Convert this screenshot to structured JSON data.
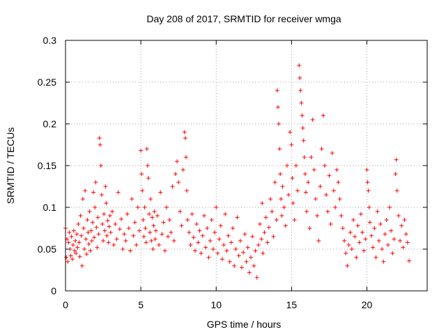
{
  "chart_data": {
    "type": "scatter",
    "title": "Day 208 of 2017, SRMTID for receiver wmga",
    "xlabel": "GPS time / hours",
    "ylabel": "SRMTID / TECUs",
    "xlim": [
      0,
      24
    ],
    "ylim": [
      0,
      0.3
    ],
    "x_ticks": [
      0,
      5,
      10,
      15,
      20
    ],
    "x_tick_labels": [
      "0",
      "5",
      "10",
      "15",
      "20"
    ],
    "y_ticks": [
      0,
      0.05,
      0.1,
      0.15,
      0.2,
      0.25,
      0.3
    ],
    "y_tick_labels": [
      "0",
      "0.05",
      "0.1",
      "0.15",
      "0.2",
      "0.25",
      "0.3"
    ],
    "grid": true,
    "marker": "+",
    "color": "#ff0000",
    "series": [
      {
        "name": "SRMTID",
        "points": [
          [
            0.0,
            0.075
          ],
          [
            0.05,
            0.04
          ],
          [
            0.1,
            0.062
          ],
          [
            0.15,
            0.035
          ],
          [
            0.2,
            0.058
          ],
          [
            0.25,
            0.07
          ],
          [
            0.3,
            0.05
          ],
          [
            0.35,
            0.042
          ],
          [
            0.4,
            0.065
          ],
          [
            0.45,
            0.038
          ],
          [
            0.5,
            0.055
          ],
          [
            0.55,
            0.072
          ],
          [
            0.6,
            0.048
          ],
          [
            0.65,
            0.06
          ],
          [
            0.7,
            0.045
          ],
          [
            0.75,
            0.068
          ],
          [
            0.8,
            0.052
          ],
          [
            0.85,
            0.08
          ],
          [
            0.9,
            0.058
          ],
          [
            0.95,
            0.041
          ],
          [
            1.0,
            0.09
          ],
          [
            1.05,
            0.066
          ],
          [
            1.1,
            0.03
          ],
          [
            1.15,
            0.11
          ],
          [
            1.2,
            0.075
          ],
          [
            1.25,
            0.05
          ],
          [
            1.3,
            0.12
          ],
          [
            1.35,
            0.062
          ],
          [
            1.4,
            0.044
          ],
          [
            1.45,
            0.085
          ],
          [
            1.5,
            0.07
          ],
          [
            1.55,
            0.056
          ],
          [
            1.6,
            0.095
          ],
          [
            1.65,
            0.048
          ],
          [
            1.7,
            0.072
          ],
          [
            1.75,
            0.06
          ],
          [
            1.8,
            0.082
          ],
          [
            1.85,
            0.118
          ],
          [
            1.9,
            0.064
          ],
          [
            1.95,
            0.1
          ],
          [
            2.0,
            0.13
          ],
          [
            2.05,
            0.076
          ],
          [
            2.1,
            0.052
          ],
          [
            2.15,
            0.088
          ],
          [
            2.2,
            0.068
          ],
          [
            2.25,
            0.183
          ],
          [
            2.3,
            0.175
          ],
          [
            2.35,
            0.15
          ],
          [
            2.4,
            0.115
          ],
          [
            2.45,
            0.08
          ],
          [
            2.5,
            0.06
          ],
          [
            2.55,
            0.092
          ],
          [
            2.6,
            0.072
          ],
          [
            2.65,
            0.125
          ],
          [
            2.7,
            0.105
          ],
          [
            2.75,
            0.066
          ],
          [
            2.8,
            0.084
          ],
          [
            2.85,
            0.058
          ],
          [
            2.9,
            0.077
          ],
          [
            2.95,
            0.09
          ],
          [
            3.0,
            0.07
          ],
          [
            3.1,
            0.095
          ],
          [
            3.2,
            0.055
          ],
          [
            3.3,
            0.08
          ],
          [
            3.4,
            0.062
          ],
          [
            3.5,
            0.118
          ],
          [
            3.6,
            0.074
          ],
          [
            3.7,
            0.086
          ],
          [
            3.8,
            0.05
          ],
          [
            3.9,
            0.068
          ],
          [
            4.0,
            0.06
          ],
          [
            4.1,
            0.092
          ],
          [
            4.2,
            0.075
          ],
          [
            4.3,
            0.048
          ],
          [
            4.4,
            0.11
          ],
          [
            4.5,
            0.066
          ],
          [
            4.6,
            0.082
          ],
          [
            4.7,
            0.055
          ],
          [
            4.8,
            0.1
          ],
          [
            4.9,
            0.072
          ],
          [
            5.0,
            0.168
          ],
          [
            5.05,
            0.14
          ],
          [
            5.1,
            0.12
          ],
          [
            5.15,
            0.085
          ],
          [
            5.2,
            0.065
          ],
          [
            5.25,
            0.1
          ],
          [
            5.3,
            0.075
          ],
          [
            5.35,
            0.058
          ],
          [
            5.4,
            0.17
          ],
          [
            5.45,
            0.15
          ],
          [
            5.5,
            0.135
          ],
          [
            5.55,
            0.092
          ],
          [
            5.6,
            0.07
          ],
          [
            5.65,
            0.11
          ],
          [
            5.7,
            0.06
          ],
          [
            5.75,
            0.088
          ],
          [
            5.8,
            0.05
          ],
          [
            5.85,
            0.078
          ],
          [
            5.9,
            0.095
          ],
          [
            5.95,
            0.062
          ],
          [
            6.0,
            0.072
          ],
          [
            6.1,
            0.09
          ],
          [
            6.2,
            0.055
          ],
          [
            6.3,
            0.118
          ],
          [
            6.4,
            0.068
          ],
          [
            6.5,
            0.082
          ],
          [
            6.6,
            0.048
          ],
          [
            6.7,
            0.1
          ],
          [
            6.8,
            0.065
          ],
          [
            6.9,
            0.085
          ],
          [
            7.0,
            0.07
          ],
          [
            7.1,
            0.125
          ],
          [
            7.2,
            0.06
          ],
          [
            7.3,
            0.14
          ],
          [
            7.4,
            0.155
          ],
          [
            7.5,
            0.13
          ],
          [
            7.6,
            0.095
          ],
          [
            7.7,
            0.078
          ],
          [
            7.8,
            0.145
          ],
          [
            7.9,
            0.19
          ],
          [
            7.95,
            0.183
          ],
          [
            8.0,
            0.16
          ],
          [
            8.05,
            0.12
          ],
          [
            8.1,
            0.085
          ],
          [
            8.2,
            0.07
          ],
          [
            8.3,
            0.055
          ],
          [
            8.4,
            0.092
          ],
          [
            8.5,
            0.064
          ],
          [
            8.6,
            0.048
          ],
          [
            8.7,
            0.08
          ],
          [
            8.8,
            0.058
          ],
          [
            8.9,
            0.072
          ],
          [
            9.0,
            0.045
          ],
          [
            9.1,
            0.066
          ],
          [
            9.2,
            0.09
          ],
          [
            9.3,
            0.052
          ],
          [
            9.4,
            0.075
          ],
          [
            9.5,
            0.04
          ],
          [
            9.6,
            0.06
          ],
          [
            9.7,
            0.085
          ],
          [
            9.8,
            0.05
          ],
          [
            9.9,
            0.07
          ],
          [
            10.0,
            0.1
          ],
          [
            10.1,
            0.045
          ],
          [
            10.2,
            0.062
          ],
          [
            10.3,
            0.078
          ],
          [
            10.4,
            0.038
          ],
          [
            10.5,
            0.055
          ],
          [
            10.6,
            0.092
          ],
          [
            10.7,
            0.048
          ],
          [
            10.8,
            0.066
          ],
          [
            10.9,
            0.035
          ],
          [
            11.0,
            0.058
          ],
          [
            11.1,
            0.075
          ],
          [
            11.2,
            0.03
          ],
          [
            11.3,
            0.05
          ],
          [
            11.4,
            0.088
          ],
          [
            11.5,
            0.042
          ],
          [
            11.6,
            0.06
          ],
          [
            11.7,
            0.028
          ],
          [
            11.8,
            0.046
          ],
          [
            11.9,
            0.068
          ],
          [
            12.0,
            0.035
          ],
          [
            12.1,
            0.052
          ],
          [
            12.2,
            0.022
          ],
          [
            12.3,
            0.04
          ],
          [
            12.4,
            0.065
          ],
          [
            12.5,
            0.03
          ],
          [
            12.6,
            0.048
          ],
          [
            12.7,
            0.016
          ],
          [
            12.8,
            0.055
          ],
          [
            12.9,
            0.08
          ],
          [
            13.0,
            0.062
          ],
          [
            13.05,
            0.105
          ],
          [
            13.1,
            0.045
          ],
          [
            13.2,
            0.07
          ],
          [
            13.3,
            0.088
          ],
          [
            13.4,
            0.058
          ],
          [
            13.5,
            0.076
          ],
          [
            13.6,
            0.11
          ],
          [
            13.7,
            0.095
          ],
          [
            13.8,
            0.065
          ],
          [
            13.9,
            0.13
          ],
          [
            14.0,
            0.085
          ],
          [
            14.05,
            0.24
          ],
          [
            14.1,
            0.22
          ],
          [
            14.15,
            0.2
          ],
          [
            14.2,
            0.17
          ],
          [
            14.25,
            0.14
          ],
          [
            14.3,
            0.11
          ],
          [
            14.35,
            0.09
          ],
          [
            14.4,
            0.125
          ],
          [
            14.5,
            0.1
          ],
          [
            14.6,
            0.078
          ],
          [
            14.7,
            0.15
          ],
          [
            14.8,
            0.115
          ],
          [
            14.9,
            0.19
          ],
          [
            15.0,
            0.175
          ],
          [
            15.05,
            0.135
          ],
          [
            15.1,
            0.105
          ],
          [
            15.2,
            0.085
          ],
          [
            15.3,
            0.15
          ],
          [
            15.4,
            0.12
          ],
          [
            15.5,
            0.27
          ],
          [
            15.55,
            0.255
          ],
          [
            15.6,
            0.24
          ],
          [
            15.65,
            0.225
          ],
          [
            15.7,
            0.21
          ],
          [
            15.75,
            0.195
          ],
          [
            15.8,
            0.18
          ],
          [
            15.85,
            0.16
          ],
          [
            15.9,
            0.14
          ],
          [
            15.95,
            0.118
          ],
          [
            16.0,
            0.095
          ],
          [
            16.1,
            0.13
          ],
          [
            16.2,
            0.075
          ],
          [
            16.3,
            0.16
          ],
          [
            16.4,
            0.205
          ],
          [
            16.5,
            0.145
          ],
          [
            16.6,
            0.11
          ],
          [
            16.7,
            0.09
          ],
          [
            16.8,
            0.06
          ],
          [
            16.9,
            0.125
          ],
          [
            17.0,
            0.17
          ],
          [
            17.1,
            0.21
          ],
          [
            17.2,
            0.15
          ],
          [
            17.3,
            0.115
          ],
          [
            17.4,
            0.095
          ],
          [
            17.5,
            0.138
          ],
          [
            17.6,
            0.08
          ],
          [
            17.7,
            0.165
          ],
          [
            17.8,
            0.12
          ],
          [
            17.9,
            0.1
          ],
          [
            18.0,
            0.145
          ],
          [
            18.1,
            0.13
          ],
          [
            18.2,
            0.11
          ],
          [
            18.3,
            0.09
          ],
          [
            18.4,
            0.075
          ],
          [
            18.5,
            0.06
          ],
          [
            18.6,
            0.045
          ],
          [
            18.7,
            0.03
          ],
          [
            18.8,
            0.055
          ],
          [
            18.9,
            0.07
          ],
          [
            19.0,
            0.05
          ],
          [
            19.1,
            0.085
          ],
          [
            19.2,
            0.065
          ],
          [
            19.3,
            0.04
          ],
          [
            19.4,
            0.078
          ],
          [
            19.5,
            0.058
          ],
          [
            19.6,
            0.092
          ],
          [
            19.7,
            0.07
          ],
          [
            19.8,
            0.048
          ],
          [
            19.9,
            0.062
          ],
          [
            20.0,
            0.145
          ],
          [
            20.05,
            0.13
          ],
          [
            20.1,
            0.12
          ],
          [
            20.15,
            0.1
          ],
          [
            20.2,
            0.082
          ],
          [
            20.3,
            0.066
          ],
          [
            20.4,
            0.052
          ],
          [
            20.5,
            0.075
          ],
          [
            20.6,
            0.04
          ],
          [
            20.7,
            0.095
          ],
          [
            20.8,
            0.06
          ],
          [
            20.9,
            0.08
          ],
          [
            21.0,
            0.05
          ],
          [
            21.1,
            0.035
          ],
          [
            21.2,
            0.068
          ],
          [
            21.3,
            0.085
          ],
          [
            21.4,
            0.055
          ],
          [
            21.5,
            0.1
          ],
          [
            21.6,
            0.072
          ],
          [
            21.7,
            0.045
          ],
          [
            21.8,
            0.062
          ],
          [
            21.9,
            0.14
          ],
          [
            21.95,
            0.157
          ],
          [
            22.0,
            0.12
          ],
          [
            22.1,
            0.09
          ],
          [
            22.2,
            0.06
          ],
          [
            22.3,
            0.078
          ],
          [
            22.4,
            0.052
          ],
          [
            22.5,
            0.085
          ],
          [
            22.6,
            0.068
          ],
          [
            22.7,
            0.058
          ],
          [
            22.8,
            0.036
          ]
        ]
      }
    ]
  }
}
